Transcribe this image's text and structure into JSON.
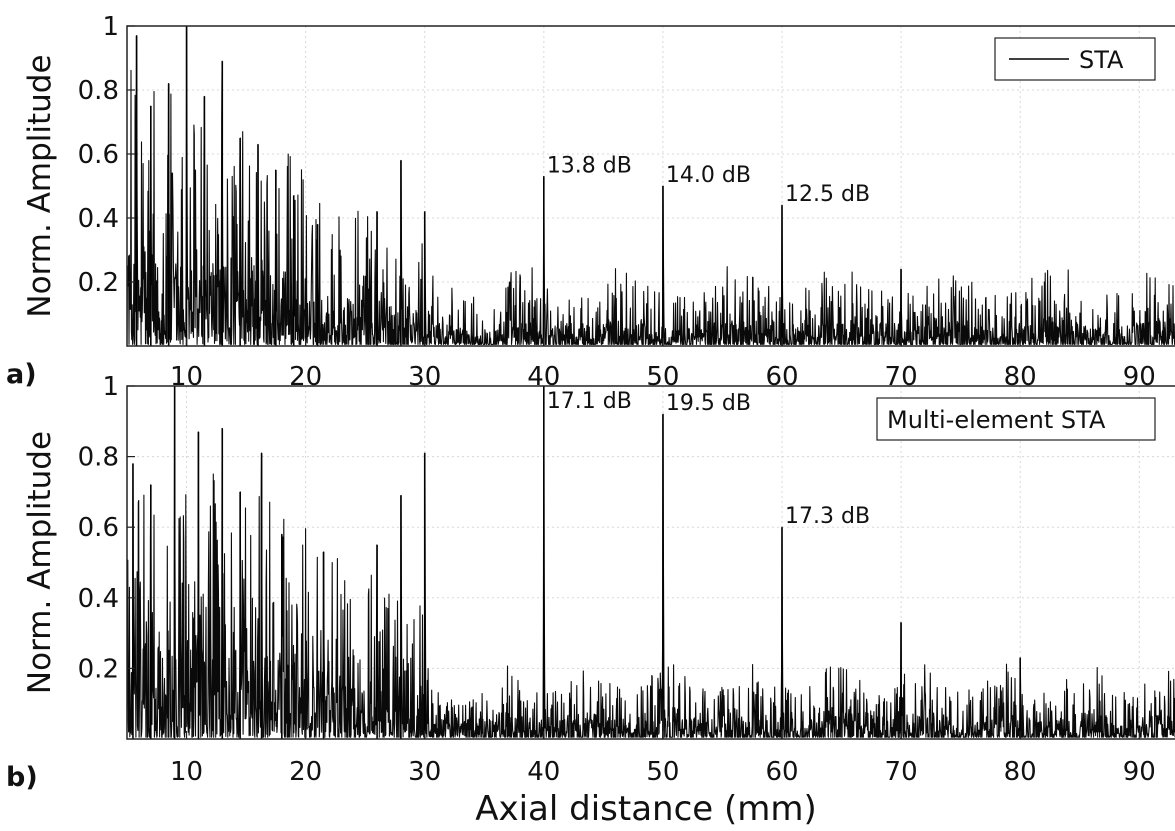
{
  "chart_data": [
    {
      "type": "line",
      "panel_label": "a)",
      "ylabel": "Norm. Amplitude",
      "xlabel": "",
      "xlim": [
        5,
        93
      ],
      "ylim": [
        0,
        1
      ],
      "xticks": [
        10,
        20,
        30,
        40,
        50,
        60,
        70,
        80,
        90
      ],
      "yticks": [
        0.2,
        0.4,
        0.6,
        0.8,
        1
      ],
      "ytick_labels": [
        "0.2",
        "0.4",
        "0.6",
        "0.8",
        "1"
      ],
      "grid": true,
      "legend": {
        "position": "top-right",
        "entries": [
          "STA"
        ]
      },
      "series": [
        {
          "name": "STA",
          "color": "#000000",
          "near_field_peaks": [
            {
              "x": 5.8,
              "y": 0.97
            },
            {
              "x": 7.0,
              "y": 0.75
            },
            {
              "x": 8.5,
              "y": 0.82
            },
            {
              "x": 10.0,
              "y": 1.0
            },
            {
              "x": 11.5,
              "y": 0.78
            },
            {
              "x": 13.0,
              "y": 0.89
            },
            {
              "x": 14.5,
              "y": 0.65
            },
            {
              "x": 16.0,
              "y": 0.63
            },
            {
              "x": 17.5,
              "y": 0.55
            },
            {
              "x": 19.0,
              "y": 0.47
            },
            {
              "x": 21.0,
              "y": 0.38
            },
            {
              "x": 26.0,
              "y": 0.42
            },
            {
              "x": 28.0,
              "y": 0.58
            },
            {
              "x": 30.0,
              "y": 0.42
            },
            {
              "x": 40.0,
              "y": 0.53
            },
            {
              "x": 50.0,
              "y": 0.5
            },
            {
              "x": 60.0,
              "y": 0.44
            },
            {
              "x": 70.0,
              "y": 0.24
            }
          ]
        }
      ],
      "annotations": [
        {
          "x": 40,
          "y": 0.53,
          "text": "13.8 dB"
        },
        {
          "x": 50,
          "y": 0.5,
          "text": "14.0 dB"
        },
        {
          "x": 60,
          "y": 0.44,
          "text": "12.5 dB"
        }
      ]
    },
    {
      "type": "line",
      "panel_label": "b)",
      "ylabel": "Norm. Amplitude",
      "xlabel": "Axial distance (mm)",
      "xlim": [
        5,
        93
      ],
      "ylim": [
        0,
        1
      ],
      "xticks": [
        10,
        20,
        30,
        40,
        50,
        60,
        70,
        80,
        90
      ],
      "yticks": [
        0.2,
        0.4,
        0.6,
        0.8,
        1
      ],
      "ytick_labels": [
        "0.2",
        "0.4",
        "0.6",
        "0.8",
        "1"
      ],
      "grid": true,
      "legend": {
        "position": "top-right",
        "entries": [
          "Multi-element STA"
        ]
      },
      "series": [
        {
          "name": "Multi-element STA",
          "color": "#000000",
          "near_field_peaks": [
            {
              "x": 5.5,
              "y": 0.78
            },
            {
              "x": 7.0,
              "y": 0.72
            },
            {
              "x": 9.0,
              "y": 1.0
            },
            {
              "x": 11.0,
              "y": 0.87
            },
            {
              "x": 13.0,
              "y": 0.88
            },
            {
              "x": 14.5,
              "y": 0.7
            },
            {
              "x": 16.3,
              "y": 0.81
            },
            {
              "x": 18.0,
              "y": 0.58
            },
            {
              "x": 21.5,
              "y": 0.53
            },
            {
              "x": 26.0,
              "y": 0.55
            },
            {
              "x": 28.0,
              "y": 0.69
            },
            {
              "x": 30.0,
              "y": 0.81
            },
            {
              "x": 40.0,
              "y": 1.0
            },
            {
              "x": 50.0,
              "y": 0.92
            },
            {
              "x": 60.0,
              "y": 0.6
            },
            {
              "x": 70.0,
              "y": 0.33
            },
            {
              "x": 80.0,
              "y": 0.23
            }
          ]
        }
      ],
      "annotations": [
        {
          "x": 40,
          "y": 1.0,
          "text": "17.1 dB"
        },
        {
          "x": 50,
          "y": 0.92,
          "text": "19.5 dB"
        },
        {
          "x": 60,
          "y": 0.6,
          "text": "17.3 dB"
        }
      ]
    }
  ]
}
